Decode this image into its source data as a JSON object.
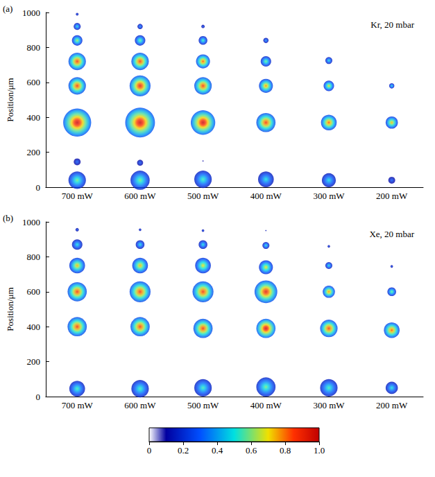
{
  "chart_data": [
    {
      "type": "scatter",
      "panel": "(a)",
      "annotation": "Kr, 20 mbar",
      "y_label": "Position/μm",
      "categories": [
        "700 mW",
        "600 mW",
        "500 mW",
        "400 mW",
        "300 mW",
        "200 mW"
      ],
      "ylim": [
        0,
        1000
      ],
      "yticks": [
        0,
        200,
        400,
        600,
        800,
        1000
      ],
      "grid": false,
      "spots": [
        [
          [
            990,
            16,
            0.3
          ],
          [
            920,
            40,
            0.5
          ],
          [
            840,
            60,
            0.65
          ],
          [
            720,
            100,
            0.9
          ],
          [
            580,
            100,
            0.9
          ],
          [
            370,
            160,
            1.0
          ],
          [
            145,
            40,
            0.3
          ],
          [
            40,
            100,
            0.6
          ]
        ],
        [
          [
            920,
            30,
            0.4
          ],
          [
            840,
            60,
            0.6
          ],
          [
            720,
            100,
            0.9
          ],
          [
            580,
            120,
            0.95
          ],
          [
            370,
            170,
            1.0
          ],
          [
            140,
            35,
            0.3
          ],
          [
            40,
            110,
            0.6
          ]
        ],
        [
          [
            920,
            20,
            0.3
          ],
          [
            840,
            50,
            0.55
          ],
          [
            720,
            80,
            0.85
          ],
          [
            580,
            100,
            0.9
          ],
          [
            370,
            140,
            1.0
          ],
          [
            150,
            10,
            0.1
          ],
          [
            45,
            100,
            0.55
          ]
        ],
        [
          [
            840,
            30,
            0.4
          ],
          [
            720,
            60,
            0.6
          ],
          [
            580,
            80,
            0.8
          ],
          [
            370,
            110,
            0.9
          ],
          [
            45,
            90,
            0.5
          ]
        ],
        [
          [
            725,
            40,
            0.5
          ],
          [
            580,
            60,
            0.7
          ],
          [
            370,
            90,
            0.85
          ],
          [
            40,
            80,
            0.5
          ]
        ],
        [
          [
            580,
            30,
            0.5
          ],
          [
            370,
            70,
            0.75
          ],
          [
            40,
            40,
            0.3
          ]
        ]
      ]
    },
    {
      "type": "scatter",
      "panel": "(b)",
      "annotation": "Xe, 20 mbar",
      "y_label": "Position/μm",
      "categories": [
        "700 mW",
        "600 mW",
        "500 mW",
        "400 mW",
        "300 mW",
        "200 mW"
      ],
      "ylim": [
        0,
        1000
      ],
      "yticks": [
        0,
        200,
        400,
        600,
        800,
        1000
      ],
      "grid": false,
      "spots": [
        [
          [
            955,
            20,
            0.3
          ],
          [
            870,
            60,
            0.5
          ],
          [
            750,
            90,
            0.75
          ],
          [
            600,
            110,
            0.9
          ],
          [
            400,
            110,
            0.9
          ],
          [
            45,
            90,
            0.55
          ]
        ],
        [
          [
            955,
            15,
            0.3
          ],
          [
            870,
            50,
            0.5
          ],
          [
            750,
            90,
            0.75
          ],
          [
            600,
            120,
            0.9
          ],
          [
            400,
            110,
            0.9
          ],
          [
            45,
            100,
            0.55
          ]
        ],
        [
          [
            950,
            15,
            0.3
          ],
          [
            870,
            50,
            0.5
          ],
          [
            750,
            90,
            0.7
          ],
          [
            600,
            120,
            0.9
          ],
          [
            390,
            110,
            0.9
          ],
          [
            50,
            100,
            0.55
          ]
        ],
        [
          [
            950,
            8,
            0.2
          ],
          [
            865,
            40,
            0.5
          ],
          [
            740,
            80,
            0.7
          ],
          [
            600,
            130,
            0.95
          ],
          [
            390,
            110,
            1.0
          ],
          [
            55,
            110,
            0.6
          ]
        ],
        [
          [
            860,
            15,
            0.3
          ],
          [
            750,
            40,
            0.5
          ],
          [
            600,
            70,
            0.8
          ],
          [
            390,
            100,
            0.9
          ],
          [
            50,
            100,
            0.55
          ]
        ],
        [
          [
            745,
            15,
            0.3
          ],
          [
            600,
            50,
            0.6
          ],
          [
            380,
            90,
            0.85
          ],
          [
            50,
            70,
            0.5
          ]
        ]
      ]
    }
  ],
  "colorbar": {
    "range": [
      0,
      1
    ],
    "ticks": [
      0,
      {
        "value": 0.2,
        "label": "0.2"
      },
      {
        "value": 0.4,
        "label": "0.4"
      },
      {
        "value": 0.6,
        "label": "0.6"
      },
      {
        "value": 0.8,
        "label": "0.8"
      },
      {
        "value": 1,
        "label": "1.0"
      }
    ]
  }
}
